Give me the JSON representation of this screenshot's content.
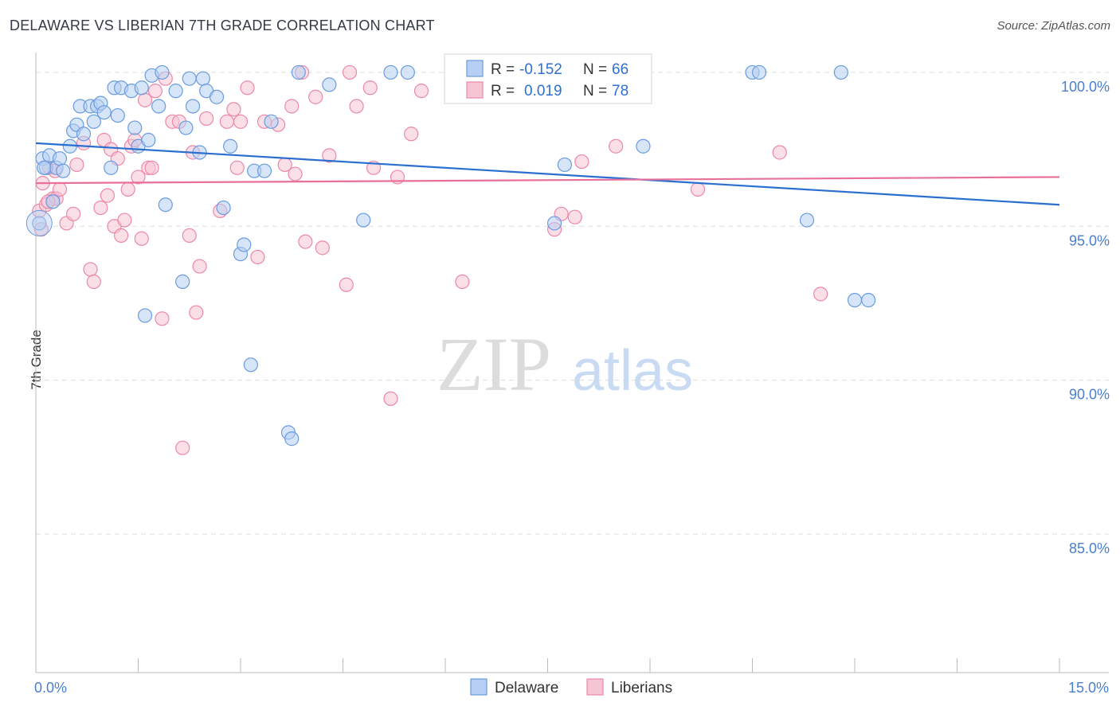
{
  "chart_data": {
    "type": "scatter",
    "title": "DELAWARE VS LIBERIAN 7TH GRADE CORRELATION CHART",
    "source": "Source: ZipAtlas.com",
    "ylabel": "7th Grade",
    "xlabel": "",
    "xlim": [
      0,
      15
    ],
    "ylim": [
      80.5,
      100.8
    ],
    "x_tick_labels": [
      {
        "value": 0,
        "label": "0.0%"
      },
      {
        "value": 15,
        "label": "15.0%"
      }
    ],
    "y_tick_labels": [
      {
        "value": 100,
        "label": "100.0%"
      },
      {
        "value": 95,
        "label": "95.0%"
      },
      {
        "value": 90,
        "label": "90.0%"
      },
      {
        "value": 85,
        "label": "85.0%"
      }
    ],
    "watermark": {
      "zip": "ZIP",
      "atlas": "atlas"
    },
    "legend": {
      "rows": [
        {
          "r_label": "R =",
          "r_value": "-0.152",
          "n_label": "N =",
          "n_value": "66"
        },
        {
          "r_label": "R =",
          "r_value": "0.019",
          "n_label": "N =",
          "n_value": "78"
        }
      ]
    },
    "colors": {
      "delaware": "#6a9be0",
      "delaware_fill": "#b7cff2",
      "liberians": "#ec88a8",
      "liberians_fill": "#f7c4d4",
      "trend_blue": "#2a6fd0",
      "trend_pink": "#e8709a"
    },
    "series": [
      {
        "name": "Delaware",
        "trend": {
          "x0": 0,
          "y0": 97.7,
          "x1": 15,
          "y1": 95.7
        },
        "points": [
          [
            0.1,
            97.2
          ],
          [
            0.15,
            96.9
          ],
          [
            0.2,
            97.3
          ],
          [
            0.25,
            95.8
          ],
          [
            0.3,
            96.9
          ],
          [
            0.35,
            97.2
          ],
          [
            0.4,
            96.8
          ],
          [
            0.5,
            97.6
          ],
          [
            0.55,
            98.1
          ],
          [
            0.6,
            98.3
          ],
          [
            0.65,
            98.9
          ],
          [
            0.7,
            98.0
          ],
          [
            0.8,
            98.9
          ],
          [
            0.85,
            98.4
          ],
          [
            0.9,
            98.9
          ],
          [
            0.95,
            99.0
          ],
          [
            1.0,
            98.7
          ],
          [
            1.1,
            96.9
          ],
          [
            1.15,
            99.5
          ],
          [
            1.2,
            98.6
          ],
          [
            1.25,
            99.5
          ],
          [
            1.4,
            99.4
          ],
          [
            1.45,
            98.2
          ],
          [
            1.5,
            97.6
          ],
          [
            1.55,
            99.5
          ],
          [
            1.6,
            92.1
          ],
          [
            1.65,
            97.8
          ],
          [
            1.7,
            99.9
          ],
          [
            1.8,
            98.9
          ],
          [
            1.85,
            100.0
          ],
          [
            1.9,
            95.7
          ],
          [
            2.05,
            99.4
          ],
          [
            2.15,
            93.2
          ],
          [
            2.2,
            98.2
          ],
          [
            2.25,
            99.8
          ],
          [
            2.3,
            98.9
          ],
          [
            2.4,
            97.4
          ],
          [
            2.45,
            99.8
          ],
          [
            2.5,
            99.4
          ],
          [
            2.65,
            99.2
          ],
          [
            2.75,
            95.6
          ],
          [
            2.85,
            97.6
          ],
          [
            3.0,
            94.1
          ],
          [
            3.05,
            94.4
          ],
          [
            3.15,
            90.5
          ],
          [
            3.2,
            96.8
          ],
          [
            3.35,
            96.8
          ],
          [
            3.45,
            98.4
          ],
          [
            3.7,
            88.3
          ],
          [
            3.75,
            88.1
          ],
          [
            3.85,
            100.0
          ],
          [
            4.3,
            99.6
          ],
          [
            4.8,
            95.2
          ],
          [
            5.2,
            100.0
          ],
          [
            5.45,
            100.0
          ],
          [
            7.6,
            95.1
          ],
          [
            7.75,
            97.0
          ],
          [
            8.9,
            97.6
          ],
          [
            10.5,
            100.0
          ],
          [
            10.6,
            100.0
          ],
          [
            11.3,
            95.2
          ],
          [
            11.8,
            100.0
          ],
          [
            12.0,
            92.6
          ],
          [
            12.2,
            92.6
          ],
          [
            0.05,
            95.1
          ],
          [
            0.12,
            96.9
          ]
        ]
      },
      {
        "name": "Liberians",
        "trend": {
          "x0": 0,
          "y0": 96.4,
          "x1": 15,
          "y1": 96.6
        },
        "points": [
          [
            0.05,
            95.5
          ],
          [
            0.1,
            96.4
          ],
          [
            0.15,
            95.7
          ],
          [
            0.2,
            96.9
          ],
          [
            0.25,
            95.9
          ],
          [
            0.3,
            95.9
          ],
          [
            0.35,
            96.2
          ],
          [
            0.45,
            95.1
          ],
          [
            0.55,
            95.4
          ],
          [
            0.6,
            97.0
          ],
          [
            0.7,
            97.7
          ],
          [
            0.8,
            93.6
          ],
          [
            0.85,
            93.2
          ],
          [
            0.95,
            95.6
          ],
          [
            1.0,
            97.8
          ],
          [
            1.05,
            96.0
          ],
          [
            1.1,
            97.5
          ],
          [
            1.15,
            95.0
          ],
          [
            1.2,
            97.2
          ],
          [
            1.25,
            94.7
          ],
          [
            1.3,
            95.2
          ],
          [
            1.35,
            96.2
          ],
          [
            1.4,
            97.6
          ],
          [
            1.45,
            97.8
          ],
          [
            1.5,
            96.6
          ],
          [
            1.55,
            94.6
          ],
          [
            1.6,
            99.1
          ],
          [
            1.65,
            96.9
          ],
          [
            1.7,
            96.9
          ],
          [
            1.75,
            99.4
          ],
          [
            1.85,
            92.0
          ],
          [
            1.9,
            99.8
          ],
          [
            2.0,
            98.4
          ],
          [
            2.1,
            98.4
          ],
          [
            2.15,
            87.8
          ],
          [
            2.25,
            94.7
          ],
          [
            2.3,
            97.4
          ],
          [
            2.35,
            92.2
          ],
          [
            2.4,
            93.7
          ],
          [
            2.5,
            98.5
          ],
          [
            2.7,
            95.5
          ],
          [
            2.8,
            98.4
          ],
          [
            2.9,
            98.8
          ],
          [
            2.95,
            96.9
          ],
          [
            3.0,
            98.4
          ],
          [
            3.1,
            99.5
          ],
          [
            3.25,
            94.0
          ],
          [
            3.35,
            98.4
          ],
          [
            3.55,
            98.3
          ],
          [
            3.65,
            97.0
          ],
          [
            3.75,
            98.9
          ],
          [
            3.8,
            96.7
          ],
          [
            3.9,
            100.0
          ],
          [
            3.95,
            94.5
          ],
          [
            4.1,
            99.2
          ],
          [
            4.2,
            94.3
          ],
          [
            4.3,
            97.3
          ],
          [
            4.55,
            93.1
          ],
          [
            4.6,
            100.0
          ],
          [
            4.7,
            98.9
          ],
          [
            4.9,
            99.5
          ],
          [
            4.95,
            96.9
          ],
          [
            5.2,
            89.4
          ],
          [
            5.3,
            96.6
          ],
          [
            5.5,
            98.0
          ],
          [
            5.65,
            99.4
          ],
          [
            6.25,
            93.2
          ],
          [
            7.6,
            94.9
          ],
          [
            7.7,
            95.4
          ],
          [
            7.9,
            95.3
          ],
          [
            8.0,
            97.1
          ],
          [
            8.5,
            97.6
          ],
          [
            9.7,
            96.2
          ],
          [
            10.9,
            97.4
          ],
          [
            11.5,
            92.8
          ],
          [
            0.08,
            94.9
          ],
          [
            0.18,
            95.8
          ],
          [
            0.28,
            96.8
          ]
        ]
      }
    ]
  },
  "bottom_legend": {
    "delaware": "Delaware",
    "liberians": "Liberians"
  }
}
